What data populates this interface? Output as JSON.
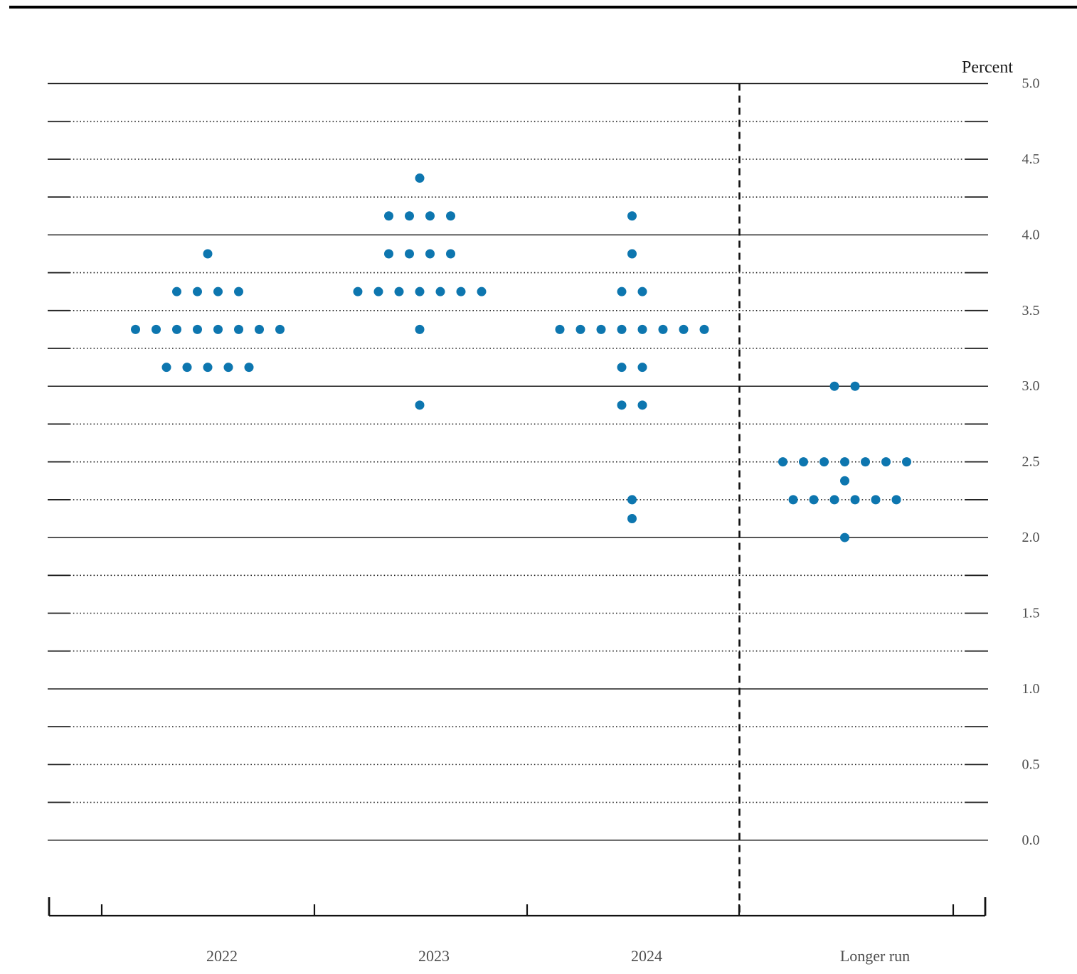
{
  "chart_data": {
    "type": "scatter",
    "subtype": "fomc-dot-plot",
    "ylabel": "Percent",
    "ylim": [
      0.0,
      5.0
    ],
    "grid_interval": 0.25,
    "y_label_interval": 0.5,
    "y_tick_labels": [
      "5.0",
      "4.5",
      "4.0",
      "3.5",
      "3.0",
      "2.5",
      "2.0",
      "1.5",
      "1.0",
      "0.5",
      "0.0"
    ],
    "grid": "on",
    "legend_position": "none",
    "dot_color": "#0d76af",
    "categories": [
      "2022",
      "2023",
      "2024",
      "Longer run"
    ],
    "separator_after_category": "2024",
    "series": [
      {
        "category": "2022",
        "rows": [
          {
            "rate": 3.875,
            "count": 1
          },
          {
            "rate": 3.625,
            "count": 4
          },
          {
            "rate": 3.375,
            "count": 8
          },
          {
            "rate": 3.125,
            "count": 5
          }
        ]
      },
      {
        "category": "2023",
        "rows": [
          {
            "rate": 4.375,
            "count": 1
          },
          {
            "rate": 4.125,
            "count": 4
          },
          {
            "rate": 3.875,
            "count": 4
          },
          {
            "rate": 3.625,
            "count": 7
          },
          {
            "rate": 3.375,
            "count": 1
          },
          {
            "rate": 2.875,
            "count": 1
          }
        ]
      },
      {
        "category": "2024",
        "rows": [
          {
            "rate": 4.125,
            "count": 1
          },
          {
            "rate": 3.875,
            "count": 1
          },
          {
            "rate": 3.625,
            "count": 2
          },
          {
            "rate": 3.375,
            "count": 8
          },
          {
            "rate": 3.125,
            "count": 2
          },
          {
            "rate": 2.875,
            "count": 2
          },
          {
            "rate": 2.25,
            "count": 1
          },
          {
            "rate": 2.125,
            "count": 1
          }
        ]
      },
      {
        "category": "Longer run",
        "rows": [
          {
            "rate": 3.0,
            "count": 2
          },
          {
            "rate": 2.5,
            "count": 7
          },
          {
            "rate": 2.375,
            "count": 1
          },
          {
            "rate": 2.25,
            "count": 6
          },
          {
            "rate": 2.0,
            "count": 1
          }
        ]
      }
    ]
  }
}
